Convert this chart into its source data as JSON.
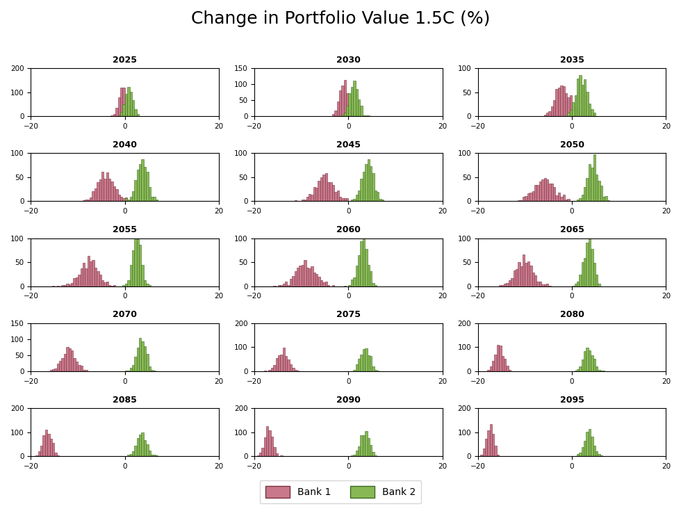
{
  "title": "Change in Portfolio Value 1.5C (%)",
  "years": [
    2025,
    2030,
    2035,
    2040,
    2045,
    2050,
    2055,
    2060,
    2065,
    2070,
    2075,
    2080,
    2085,
    2090,
    2095
  ],
  "bank1_color": "#c8788a",
  "bank2_color": "#88b855",
  "bank1_edge": "#7a3040",
  "bank2_edge": "#3a6a20",
  "xlim": [
    -20,
    20
  ],
  "legend_labels": [
    "Bank 1",
    "Bank 2"
  ],
  "bank1_params": {
    "2025": {
      "mean": -0.5,
      "std": 0.8,
      "n": 500
    },
    "2030": {
      "mean": -1.0,
      "std": 1.0,
      "n": 500
    },
    "2035": {
      "mean": -2.0,
      "std": 1.5,
      "n": 500
    },
    "2040": {
      "mean": -4.0,
      "std": 1.8,
      "n": 500
    },
    "2045": {
      "mean": -5.0,
      "std": 2.0,
      "n": 500
    },
    "2050": {
      "mean": -6.0,
      "std": 2.2,
      "n": 500
    },
    "2055": {
      "mean": -7.5,
      "std": 2.0,
      "n": 500
    },
    "2060": {
      "mean": -9.0,
      "std": 2.0,
      "n": 500
    },
    "2065": {
      "mean": -10.0,
      "std": 1.8,
      "n": 500
    },
    "2070": {
      "mean": -12.0,
      "std": 1.5,
      "n": 500
    },
    "2075": {
      "mean": -14.0,
      "std": 1.2,
      "n": 500
    },
    "2080": {
      "mean": -15.5,
      "std": 1.0,
      "n": 500
    },
    "2085": {
      "mean": -16.5,
      "std": 0.8,
      "n": 500
    },
    "2090": {
      "mean": -17.0,
      "std": 0.8,
      "n": 500
    },
    "2095": {
      "mean": -17.5,
      "std": 0.7,
      "n": 500
    }
  },
  "bank2_params": {
    "2025": {
      "mean": 0.8,
      "std": 0.8,
      "n": 500
    },
    "2030": {
      "mean": 1.2,
      "std": 0.9,
      "n": 500
    },
    "2035": {
      "mean": 2.0,
      "std": 1.2,
      "n": 500
    },
    "2040": {
      "mean": 3.5,
      "std": 1.2,
      "n": 500
    },
    "2045": {
      "mean": 4.0,
      "std": 1.2,
      "n": 500
    },
    "2050": {
      "mean": 4.5,
      "std": 1.2,
      "n": 500
    },
    "2055": {
      "mean": 2.5,
      "std": 0.9,
      "n": 500
    },
    "2060": {
      "mean": 3.0,
      "std": 1.0,
      "n": 500
    },
    "2065": {
      "mean": 3.5,
      "std": 1.0,
      "n": 500
    },
    "2070": {
      "mean": 3.5,
      "std": 1.0,
      "n": 500
    },
    "2075": {
      "mean": 3.5,
      "std": 1.0,
      "n": 500
    },
    "2080": {
      "mean": 3.5,
      "std": 1.0,
      "n": 500
    },
    "2085": {
      "mean": 3.5,
      "std": 1.0,
      "n": 500
    },
    "2090": {
      "mean": 3.5,
      "std": 1.0,
      "n": 500
    },
    "2095": {
      "mean": 3.5,
      "std": 1.0,
      "n": 500
    }
  },
  "ylims": {
    "2025": [
      0,
      200
    ],
    "2030": [
      0,
      150
    ],
    "2035": [
      0,
      100
    ],
    "2040": [
      0,
      100
    ],
    "2045": [
      0,
      100
    ],
    "2050": [
      0,
      100
    ],
    "2055": [
      0,
      100
    ],
    "2060": [
      0,
      100
    ],
    "2065": [
      0,
      100
    ],
    "2070": [
      0,
      150
    ],
    "2075": [
      0,
      200
    ],
    "2080": [
      0,
      200
    ],
    "2085": [
      0,
      200
    ],
    "2090": [
      0,
      200
    ],
    "2095": [
      0,
      200
    ]
  },
  "yticks": {
    "2025": [
      0,
      100,
      200
    ],
    "2030": [
      0,
      50,
      100,
      150
    ],
    "2035": [
      0,
      50,
      100
    ],
    "2040": [
      0,
      50,
      100
    ],
    "2045": [
      0,
      50,
      100
    ],
    "2050": [
      0,
      50,
      100
    ],
    "2055": [
      0,
      50,
      100
    ],
    "2060": [
      0,
      50,
      100
    ],
    "2065": [
      0,
      50,
      100
    ],
    "2070": [
      0,
      50,
      100,
      150
    ],
    "2075": [
      0,
      100,
      200
    ],
    "2080": [
      0,
      100,
      200
    ],
    "2085": [
      0,
      100,
      200
    ],
    "2090": [
      0,
      100,
      200
    ],
    "2095": [
      0,
      100,
      200
    ]
  }
}
